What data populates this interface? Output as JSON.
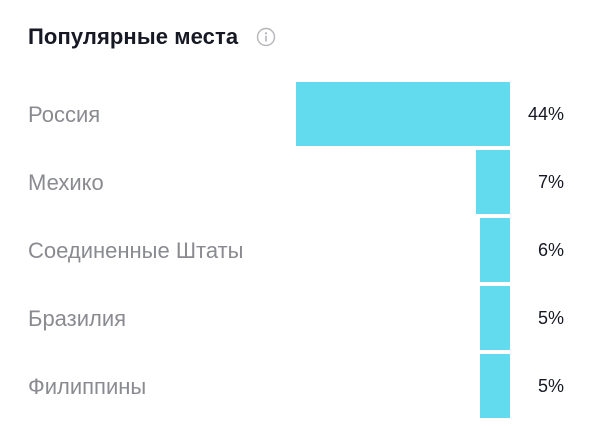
{
  "header": {
    "title": "Популярные места",
    "info_icon": "info-icon"
  },
  "colors": {
    "bar": "#63dbee",
    "category_text": "#8a8b91",
    "value_text": "#161823",
    "icon": "#b5b6ba"
  },
  "chart_data": {
    "type": "bar",
    "orientation": "horizontal",
    "title": "Популярные места",
    "categories": [
      "Россия",
      "Мехико",
      "Соединенные Штаты",
      "Бразилия",
      "Филиппины"
    ],
    "values": [
      44,
      7,
      6,
      5,
      5
    ],
    "value_labels": [
      "44%",
      "7%",
      "6%",
      "5%",
      "5%"
    ],
    "unit": "%",
    "bar_anchor": "right",
    "grid": false,
    "legend": "none"
  }
}
